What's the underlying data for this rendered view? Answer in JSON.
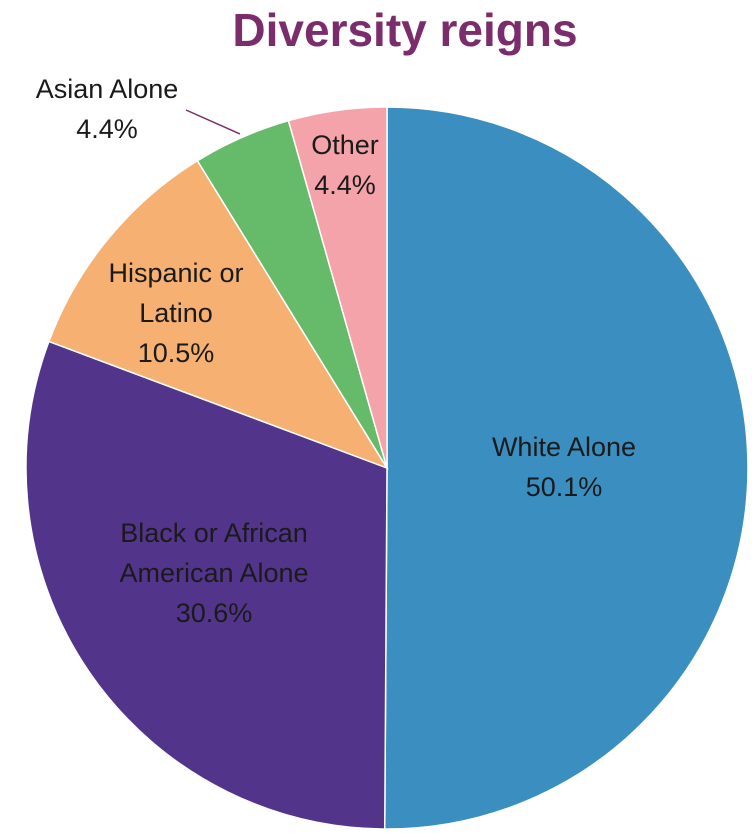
{
  "chart_data": {
    "type": "pie",
    "title": "Diversity reigns",
    "title_color": "#7b2d6b",
    "start": "12 o'clock",
    "direction": "clockwise",
    "slices": [
      {
        "label_lines": [
          "White Alone"
        ],
        "value": 50.1,
        "value_label": "50.1%",
        "color": "#3b8fc0"
      },
      {
        "label_lines": [
          "Black or African",
          "American Alone"
        ],
        "value": 30.6,
        "value_label": "30.6%",
        "color": "#52358a"
      },
      {
        "label_lines": [
          "Hispanic or",
          "Latino"
        ],
        "value": 10.5,
        "value_label": "10.5%",
        "color": "#f5b072"
      },
      {
        "label_lines": [
          "Asian Alone"
        ],
        "value": 4.4,
        "value_label": "4.4%",
        "color": "#66bb6a"
      },
      {
        "label_lines": [
          "Other"
        ],
        "value": 4.4,
        "value_label": "4.4%",
        "color": "#f4a3ab"
      }
    ]
  }
}
